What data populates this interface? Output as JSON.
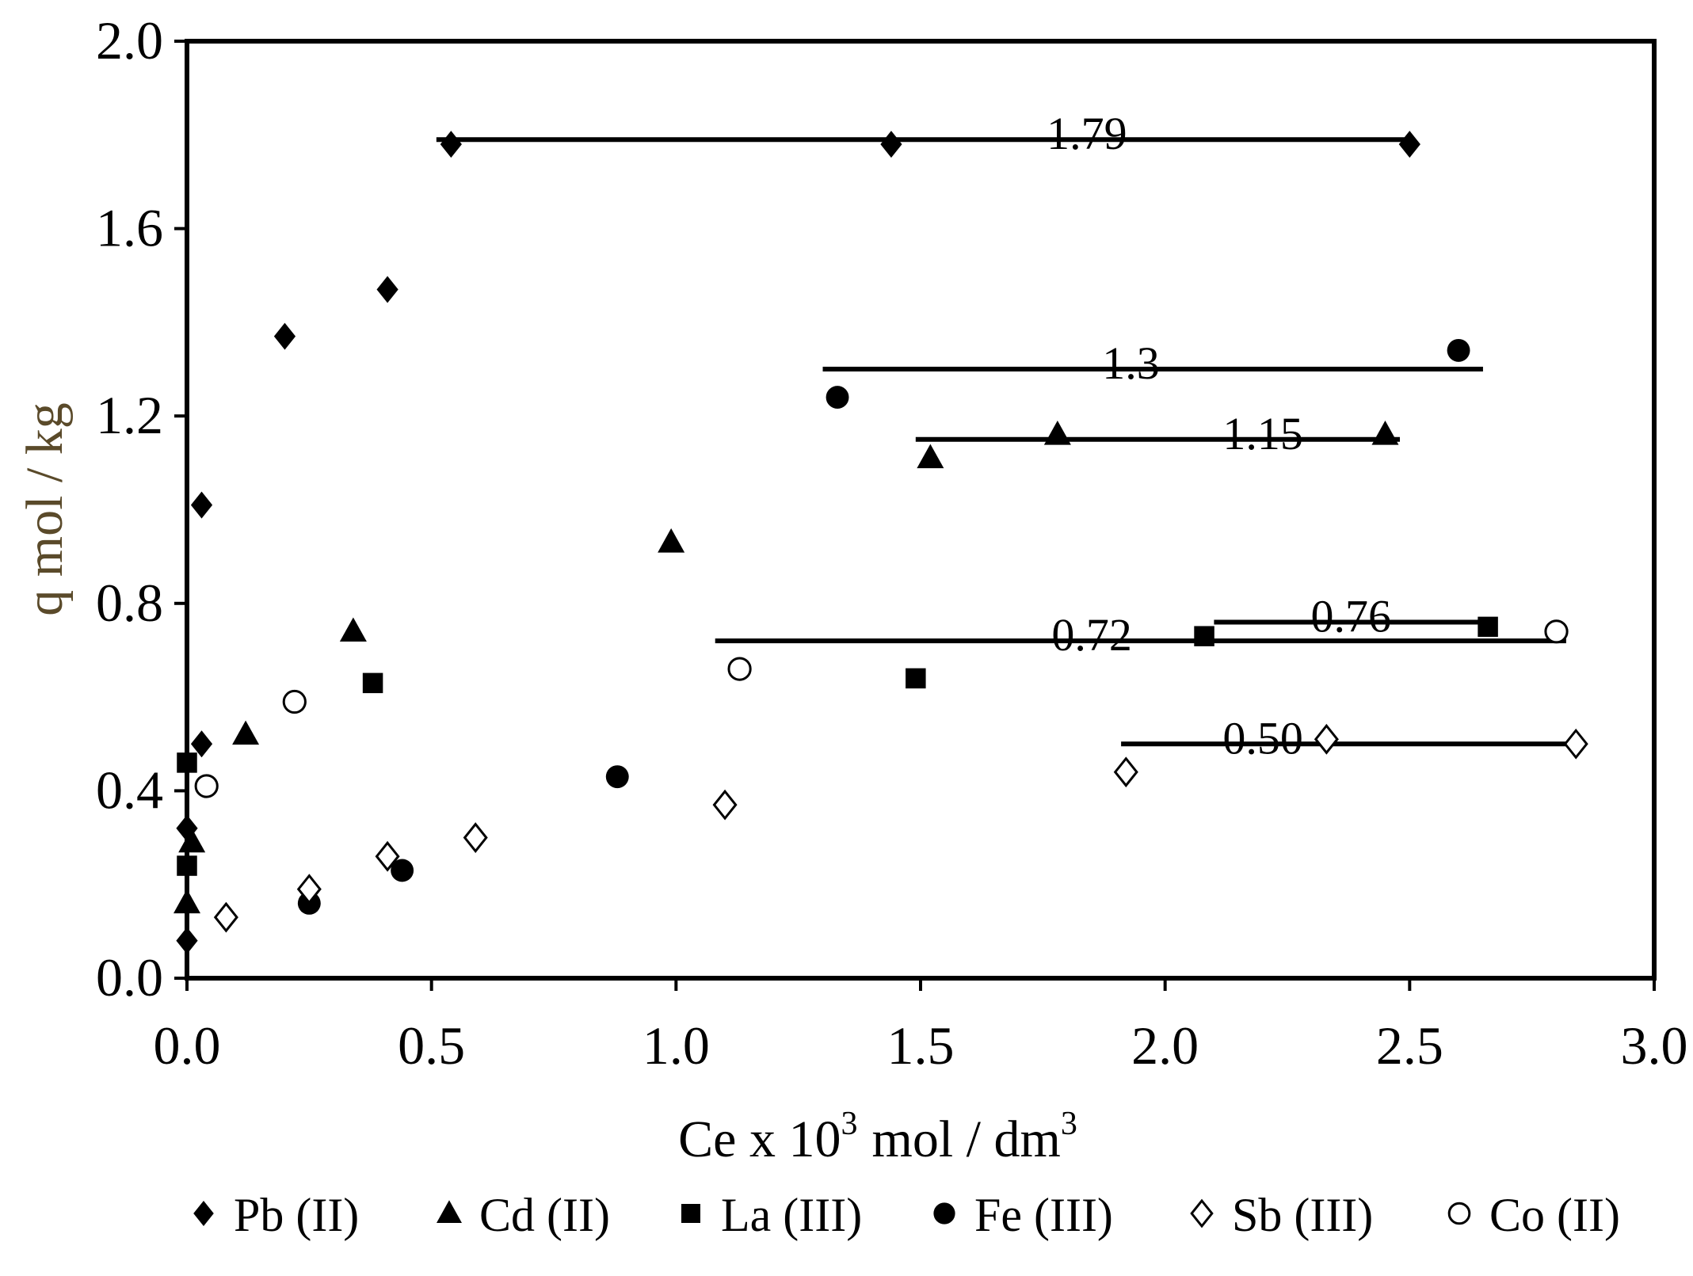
{
  "chart_data": {
    "type": "scatter",
    "title": "",
    "xlabel": {
      "main": "Ce x 10",
      "exponent": "3",
      "unit": "mol / dm",
      "unit_exponent": "3"
    },
    "ylabel": "q mol / kg",
    "xlim": [
      0,
      3.0
    ],
    "ylim": [
      0,
      2.0
    ],
    "grid": false,
    "legend_position": "bottom",
    "x_ticks": [
      "0.0",
      "0.5",
      "1.0",
      "1.5",
      "2.0",
      "2.5",
      "3.0"
    ],
    "y_ticks": [
      "0.0",
      "0.4",
      "0.8",
      "1.2",
      "1.6",
      "2.0"
    ],
    "series": [
      {
        "name": "Pb (II)",
        "marker": "filled-diamond",
        "x": [
          0.0,
          0.0,
          0.03,
          0.03,
          0.2,
          0.41,
          0.54,
          1.44,
          2.5
        ],
        "y": [
          0.08,
          0.32,
          0.5,
          1.01,
          1.37,
          1.47,
          1.78,
          1.78,
          1.78
        ]
      },
      {
        "name": "Cd (II)",
        "marker": "filled-triangle",
        "x": [
          0.0,
          0.01,
          0.12,
          0.34,
          0.99,
          1.52,
          1.78,
          2.45
        ],
        "y": [
          0.16,
          0.29,
          0.52,
          0.74,
          0.93,
          1.11,
          1.16,
          1.16
        ]
      },
      {
        "name": "La (III)",
        "marker": "filled-square",
        "x": [
          0.0,
          0.0,
          0.38,
          1.49,
          2.08,
          2.66
        ],
        "y": [
          0.24,
          0.46,
          0.63,
          0.64,
          0.73,
          0.75
        ]
      },
      {
        "name": "Fe (III)",
        "marker": "filled-circle",
        "x": [
          0.25,
          0.44,
          0.88,
          1.33,
          2.6
        ],
        "y": [
          0.16,
          0.23,
          0.43,
          1.24,
          1.34
        ]
      },
      {
        "name": "Sb (III)",
        "marker": "open-diamond",
        "x": [
          0.08,
          0.25,
          0.41,
          0.59,
          1.1,
          1.92,
          2.33,
          2.84
        ],
        "y": [
          0.13,
          0.19,
          0.26,
          0.3,
          0.37,
          0.44,
          0.51,
          0.5
        ]
      },
      {
        "name": "Co (II)",
        "marker": "open-circle",
        "x": [
          0.04,
          0.22,
          1.13,
          2.8
        ],
        "y": [
          0.41,
          0.59,
          0.66,
          0.74
        ]
      }
    ],
    "plateau_lines": [
      {
        "value": 1.79,
        "x_start": 0.51,
        "x_end": 2.5,
        "label": "1.79",
        "label_x": 1.84
      },
      {
        "value": 1.3,
        "x_start": 1.3,
        "x_end": 2.65,
        "label": "1.3",
        "label_x": 1.93
      },
      {
        "value": 1.15,
        "x_start": 1.49,
        "x_end": 2.48,
        "label": "1.15",
        "label_x": 2.2
      },
      {
        "value": 0.76,
        "x_start": 2.1,
        "x_end": 2.66,
        "label": "0.76",
        "label_x": 2.38
      },
      {
        "value": 0.72,
        "x_start": 1.08,
        "x_end": 2.82,
        "label": "0.72",
        "label_x": 1.85
      },
      {
        "value": 0.5,
        "x_start": 1.91,
        "x_end": 2.82,
        "label": "0.50",
        "label_x": 2.2
      }
    ]
  }
}
